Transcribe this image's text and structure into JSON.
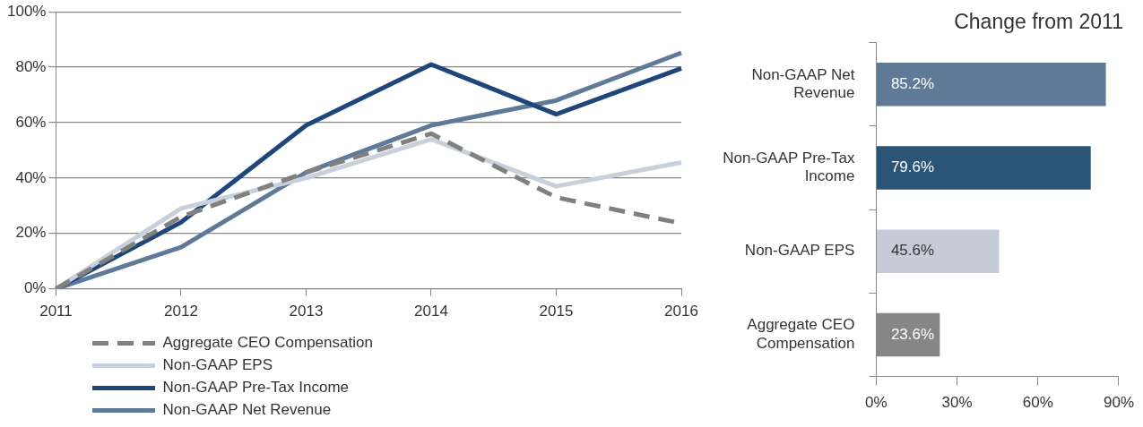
{
  "chart_data": [
    {
      "type": "line",
      "categories": [
        "2011",
        "2012",
        "2013",
        "2014",
        "2015",
        "2016"
      ],
      "series": [
        {
          "name": "Aggregate CEO Compensation",
          "color": "#808080",
          "line_style": "dashed",
          "values": [
            0,
            26,
            42,
            56,
            33,
            23.6
          ]
        },
        {
          "name": "Non-GAAP EPS",
          "color": "#c8d0dc",
          "values": [
            0,
            29,
            40,
            54,
            37,
            45.6
          ]
        },
        {
          "name": "Non-GAAP Pre-Tax Income",
          "color": "#1f467a",
          "values": [
            0,
            24,
            59,
            81,
            63,
            79.6
          ]
        },
        {
          "name": "Non-GAAP Net Revenue",
          "color": "#5f7a98",
          "values": [
            0,
            15,
            42,
            59,
            68,
            85.2
          ]
        }
      ],
      "ylim": [
        0,
        100
      ],
      "yticks": [
        {
          "value": 0,
          "label": "0%"
        },
        {
          "value": 20,
          "label": "20%"
        },
        {
          "value": 40,
          "label": "40%"
        },
        {
          "value": 60,
          "label": "60%"
        },
        {
          "value": 80,
          "label": "80%"
        },
        {
          "value": 100,
          "label": "100%"
        }
      ],
      "grid": "y",
      "legend": "bottom",
      "marker": "none",
      "line_style": "solid"
    },
    {
      "type": "bar",
      "orientation": "horizontal",
      "title": "Change from 2011",
      "categories": [
        "Non-GAAP Net Revenue",
        "Non-GAAP Pre-Tax Income",
        "Non-GAAP EPS",
        "Aggregate CEO Compensation"
      ],
      "values": [
        85.2,
        79.6,
        45.6,
        23.6
      ],
      "colors": [
        "#5f7a96",
        "#2a5576",
        "#c5ccd8",
        "#868686"
      ],
      "value_labels": [
        "85.2%",
        "79.6%",
        "45.6%",
        "23.6%"
      ],
      "xlim": [
        0,
        90
      ],
      "xticks": [
        {
          "value": 0,
          "label": "0%"
        },
        {
          "value": 30,
          "label": "30%"
        },
        {
          "value": 60,
          "label": "60%"
        },
        {
          "value": 90,
          "label": "90%"
        }
      ],
      "grid": false,
      "legend": false
    }
  ]
}
